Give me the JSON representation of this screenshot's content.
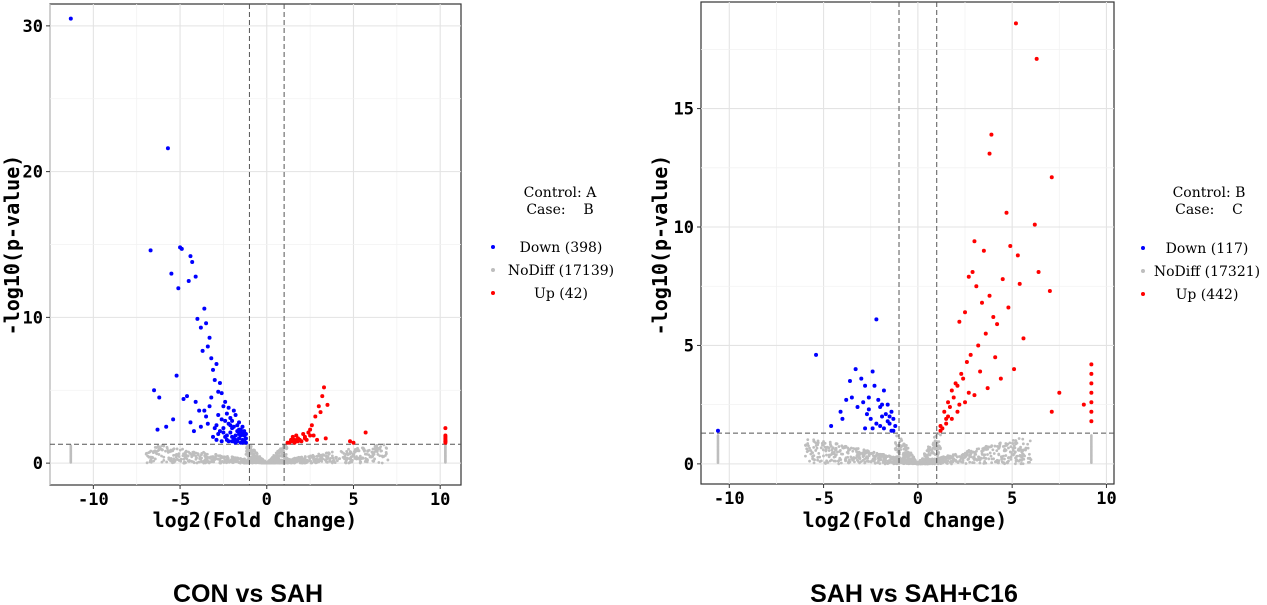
{
  "chart_data": [
    {
      "type": "scatter",
      "caption": "CON vs SAH",
      "xlabel": "log2(Fold Change)",
      "ylabel": "-log10(p-value)",
      "xlim": [
        -12.5,
        11.2
      ],
      "ylim": [
        -1.5,
        31.5
      ],
      "xticks": [
        -10,
        -5,
        0,
        5,
        10
      ],
      "yticks": [
        0,
        10,
        20,
        30
      ],
      "vlines": [
        -1,
        1
      ],
      "hline": 1.3,
      "grid": true,
      "legend_placement": "right",
      "legend_header": [
        "Control: A",
        "Case:    B"
      ],
      "series": [
        {
          "name": "Down (398)",
          "color": "#0000ff",
          "x": [
            -11.3,
            -5.7,
            -5.0,
            -4.9,
            -6.7,
            -4.4,
            -4.3,
            -5.5,
            -5.1,
            -4.5,
            -4.1,
            -3.6,
            -4.0,
            -3.8,
            -3.5,
            -3.3,
            -3.4,
            -3.2,
            -3.7,
            -6.5,
            -6.2,
            -5.2,
            -4.6,
            -4.8,
            -5.8,
            -4.1,
            -3.1,
            -3.0,
            -2.8,
            -3.9,
            -6.3,
            -5.4,
            -4.2,
            -2.9,
            -2.7,
            -3.2,
            -3.6,
            -2.6,
            -2.5,
            -2.4,
            -2.3,
            -2.2,
            -2.1,
            -2.0,
            -1.9,
            -1.8,
            -1.7,
            -1.6,
            -1.5,
            -1.4,
            -1.3,
            -1.2,
            -3.0,
            -2.6,
            -2.2,
            -2.0,
            -1.7,
            -1.5,
            -2.8,
            -2.4,
            -1.9,
            -1.6,
            -3.4,
            -2.9,
            -2.5,
            -2.1,
            -1.8,
            -1.4,
            -3.1,
            -2.7,
            -2.3,
            -1.6,
            -2.0,
            -1.3,
            -3.5,
            -2.9,
            -2.2,
            -1.8,
            -1.5,
            -1.2,
            -2.6,
            -2.3,
            -1.9,
            -1.7,
            -1.4,
            -4.4,
            -3.8,
            -3.3,
            -2.8,
            -2.4,
            -2.1,
            -1.9,
            -1.6,
            -1.5,
            -1.3,
            -2.5,
            -2.0,
            -1.8,
            -1.4,
            -1.2
          ],
          "y": [
            30.5,
            21.6,
            14.8,
            14.7,
            14.6,
            14.2,
            13.8,
            13.0,
            12.0,
            12.5,
            12.8,
            10.6,
            9.9,
            9.3,
            9.6,
            8.6,
            8.0,
            7.2,
            7.7,
            5.0,
            4.5,
            6.0,
            4.6,
            4.4,
            2.5,
            4.2,
            6.4,
            5.7,
            4.9,
            3.6,
            2.3,
            3.0,
            2.2,
            6.8,
            5.5,
            4.5,
            3.6,
            4.8,
            3.9,
            4.2,
            3.4,
            3.8,
            3.1,
            2.9,
            3.6,
            3.3,
            2.6,
            2.8,
            2.3,
            2.5,
            2.2,
            2.0,
            2.4,
            3.0,
            2.7,
            2.4,
            2.2,
            1.9,
            2.0,
            1.8,
            1.7,
            2.0,
            2.7,
            2.6,
            2.4,
            2.1,
            1.6,
            1.6,
            1.8,
            2.2,
            1.9,
            1.7,
            1.5,
            1.5,
            3.2,
            1.6,
            1.5,
            1.9,
            1.4,
            1.4,
            1.5,
            1.6,
            1.5,
            1.5,
            1.4,
            2.8,
            2.5,
            3.9,
            3.3,
            2.9,
            2.6,
            2.5,
            2.3,
            2.1,
            1.9,
            2.1,
            1.8,
            1.4,
            2.0,
            1.7
          ]
        },
        {
          "name": "NoDiff (17139)",
          "color": "#bebebe"
        },
        {
          "name": "Up (42)",
          "color": "#ff0000",
          "x": [
            1.2,
            1.4,
            1.5,
            1.7,
            1.8,
            2.0,
            2.2,
            2.3,
            2.5,
            2.6,
            2.8,
            3.0,
            3.2,
            3.3,
            3.5,
            2.1,
            1.9,
            1.6,
            2.4,
            2.7,
            3.1,
            1.3,
            1.5,
            5.7,
            10.3,
            10.3,
            10.3,
            10.3,
            10.3,
            10.3,
            10.3,
            10.3,
            5.0,
            4.8,
            2.9,
            3.4,
            1.8,
            2.2,
            1.6,
            2.5,
            1.4,
            1.7
          ],
          "y": [
            1.4,
            1.6,
            1.5,
            1.9,
            1.7,
            1.5,
            1.8,
            1.6,
            2.3,
            2.6,
            3.2,
            3.9,
            4.6,
            5.2,
            4.0,
            2.0,
            1.6,
            1.4,
            2.1,
            1.9,
            3.5,
            1.4,
            1.8,
            2.1,
            2.4,
            1.9,
            1.6,
            1.4,
            1.5,
            1.8,
            1.7,
            1.5,
            1.4,
            1.5,
            1.6,
            1.7,
            1.5,
            1.7,
            1.6,
            1.9,
            1.5,
            1.5
          ]
        }
      ]
    },
    {
      "type": "scatter",
      "caption": "SAH vs SAH+C16",
      "xlabel": "log2(Fold Change)",
      "ylabel": "-log10(p-value)",
      "xlim": [
        -11.5,
        10.4
      ],
      "ylim": [
        -0.85,
        19.5
      ],
      "xticks": [
        -10,
        -5,
        0,
        5,
        10
      ],
      "yticks": [
        0,
        5,
        10,
        15
      ],
      "vlines": [
        -1,
        1
      ],
      "hline": 1.3,
      "grid": true,
      "legend_placement": "right",
      "legend_header": [
        "Control: B",
        "Case:    C"
      ],
      "series": [
        {
          "name": "Down (117)",
          "color": "#0000ff",
          "x": [
            -10.6,
            -5.4,
            -4.6,
            -4.1,
            -3.6,
            -3.3,
            -3.0,
            -2.8,
            -2.6,
            -2.4,
            -2.2,
            -2.0,
            -1.8,
            -1.6,
            -1.4,
            -1.3,
            -1.2,
            -2.3,
            -2.1,
            -1.9,
            -1.7,
            -1.5,
            -2.9,
            -2.7,
            -2.5,
            -3.2,
            -3.5,
            -1.4,
            -2.0,
            -2.6,
            -1.8,
            -1.6,
            -1.3,
            -2.2,
            -2.4,
            -3.8,
            -4.0,
            -1.5,
            -1.9,
            -2.8
          ],
          "y": [
            1.4,
            4.6,
            1.6,
            2.2,
            3.5,
            4.0,
            3.6,
            3.3,
            2.8,
            3.9,
            6.1,
            2.4,
            3.1,
            2.5,
            2.2,
            1.9,
            1.6,
            3.3,
            2.7,
            2.0,
            2.1,
            1.7,
            2.6,
            2.1,
            1.9,
            2.4,
            2.8,
            1.4,
            1.6,
            2.3,
            1.5,
            1.8,
            1.4,
            1.7,
            1.5,
            2.7,
            1.9,
            2.0,
            2.5,
            1.5
          ]
        },
        {
          "name": "NoDiff (17321)",
          "color": "#bebebe"
        },
        {
          "name": "Up (442)",
          "color": "#ff0000",
          "x": [
            5.2,
            6.3,
            3.9,
            3.8,
            7.1,
            6.2,
            5.3,
            4.7,
            4.9,
            3.5,
            3.0,
            2.9,
            2.7,
            3.1,
            3.4,
            2.5,
            2.2,
            3.8,
            4.0,
            4.5,
            6.4,
            5.4,
            7.0,
            7.1,
            9.2,
            9.2,
            9.2,
            9.2,
            9.2,
            9.2,
            9.2,
            8.8,
            7.5,
            1.2,
            1.4,
            1.6,
            1.8,
            2.0,
            2.3,
            2.6,
            1.5,
            1.7,
            1.9,
            2.1,
            2.4,
            2.8,
            3.2,
            3.6,
            4.2,
            4.8,
            5.6,
            1.3,
            1.6,
            2.2,
            2.7,
            3.3,
            4.1,
            1.2,
            1.5,
            1.8,
            2.1,
            2.5,
            3.0,
            3.7,
            4.4,
            5.1
          ],
          "y": [
            18.6,
            17.1,
            13.9,
            13.1,
            12.1,
            10.1,
            8.8,
            10.6,
            9.2,
            9.0,
            9.4,
            8.1,
            7.9,
            7.5,
            6.8,
            6.4,
            6.0,
            7.1,
            6.2,
            7.8,
            8.1,
            7.6,
            7.3,
            2.2,
            4.2,
            3.8,
            3.4,
            3.0,
            2.6,
            2.2,
            1.8,
            2.5,
            3.0,
            1.6,
            2.2,
            2.6,
            3.1,
            3.4,
            3.8,
            4.3,
            1.9,
            2.4,
            2.8,
            3.3,
            3.6,
            4.6,
            5.0,
            5.5,
            5.9,
            6.6,
            5.3,
            1.5,
            2.0,
            2.5,
            3.0,
            3.9,
            4.5,
            1.4,
            1.7,
            1.9,
            2.2,
            2.6,
            2.9,
            3.2,
            3.6,
            4.0
          ]
        }
      ]
    }
  ]
}
